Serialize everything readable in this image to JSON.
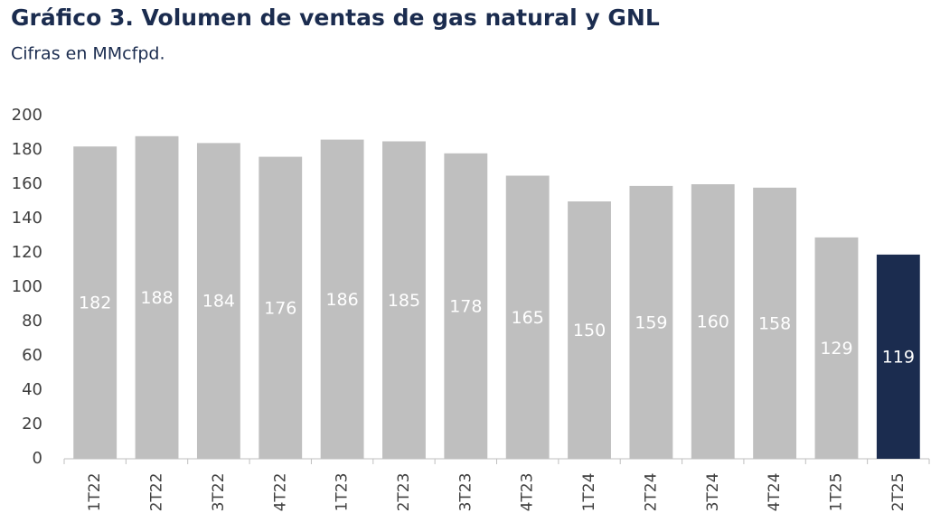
{
  "chart_data": {
    "type": "bar",
    "title": "Gráfico 3. Volumen de ventas de gas natural y GNL",
    "subtitle": "Cifras en MMcfpd.",
    "categories": [
      "1T22",
      "2T22",
      "3T22",
      "4T22",
      "1T23",
      "2T23",
      "3T23",
      "4T23",
      "1T24",
      "2T24",
      "3T24",
      "4T24",
      "1T25",
      "2T25"
    ],
    "values": [
      182,
      188,
      184,
      176,
      186,
      185,
      178,
      165,
      150,
      159,
      160,
      158,
      129,
      119
    ],
    "colors": [
      "#bfbfbf",
      "#bfbfbf",
      "#bfbfbf",
      "#bfbfbf",
      "#bfbfbf",
      "#bfbfbf",
      "#bfbfbf",
      "#bfbfbf",
      "#bfbfbf",
      "#bfbfbf",
      "#bfbfbf",
      "#bfbfbf",
      "#bfbfbf",
      "#1b2c4f"
    ],
    "ylim": [
      0,
      200
    ],
    "yticks": [
      0,
      20,
      40,
      60,
      80,
      100,
      120,
      140,
      160,
      180,
      200
    ],
    "grid": false
  }
}
